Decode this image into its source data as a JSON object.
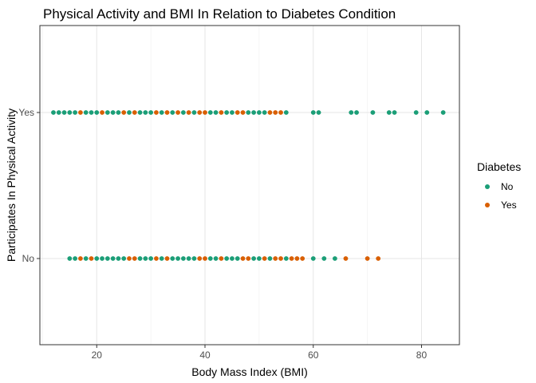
{
  "chart_data": {
    "type": "scatter",
    "title": "Physical Activity and BMI In Relation to Diabetes Condition",
    "xlabel": "Body Mass Index (BMI)",
    "ylabel": "Participates In Physical Activity",
    "xlim": [
      9.5,
      87
    ],
    "x_ticks": [
      20,
      40,
      60,
      80
    ],
    "y_categories": [
      "No",
      "Yes"
    ],
    "grid": true,
    "legend": {
      "title": "Diabetes",
      "position": "right",
      "entries": [
        "No",
        "Yes"
      ]
    },
    "colors": {
      "No": "#1b9e77",
      "Yes": "#d95f02"
    },
    "series": [
      {
        "name": "No",
        "points": [
          {
            "x": 12,
            "y": "Yes"
          },
          {
            "x": 13,
            "y": "Yes"
          },
          {
            "x": 14,
            "y": "Yes"
          },
          {
            "x": 15,
            "y": "Yes"
          },
          {
            "x": 16,
            "y": "Yes"
          },
          {
            "x": 18,
            "y": "Yes"
          },
          {
            "x": 19,
            "y": "Yes"
          },
          {
            "x": 20,
            "y": "Yes"
          },
          {
            "x": 22,
            "y": "Yes"
          },
          {
            "x": 23,
            "y": "Yes"
          },
          {
            "x": 24,
            "y": "Yes"
          },
          {
            "x": 26,
            "y": "Yes"
          },
          {
            "x": 28,
            "y": "Yes"
          },
          {
            "x": 29,
            "y": "Yes"
          },
          {
            "x": 30,
            "y": "Yes"
          },
          {
            "x": 32,
            "y": "Yes"
          },
          {
            "x": 34,
            "y": "Yes"
          },
          {
            "x": 36,
            "y": "Yes"
          },
          {
            "x": 38,
            "y": "Yes"
          },
          {
            "x": 41,
            "y": "Yes"
          },
          {
            "x": 42,
            "y": "Yes"
          },
          {
            "x": 44,
            "y": "Yes"
          },
          {
            "x": 45,
            "y": "Yes"
          },
          {
            "x": 48,
            "y": "Yes"
          },
          {
            "x": 49,
            "y": "Yes"
          },
          {
            "x": 50,
            "y": "Yes"
          },
          {
            "x": 51,
            "y": "Yes"
          },
          {
            "x": 55,
            "y": "Yes"
          },
          {
            "x": 60,
            "y": "Yes"
          },
          {
            "x": 61,
            "y": "Yes"
          },
          {
            "x": 67,
            "y": "Yes"
          },
          {
            "x": 68,
            "y": "Yes"
          },
          {
            "x": 71,
            "y": "Yes"
          },
          {
            "x": 74,
            "y": "Yes"
          },
          {
            "x": 75,
            "y": "Yes"
          },
          {
            "x": 79,
            "y": "Yes"
          },
          {
            "x": 81,
            "y": "Yes"
          },
          {
            "x": 84,
            "y": "Yes"
          },
          {
            "x": 15,
            "y": "No"
          },
          {
            "x": 16,
            "y": "No"
          },
          {
            "x": 18,
            "y": "No"
          },
          {
            "x": 20,
            "y": "No"
          },
          {
            "x": 21,
            "y": "No"
          },
          {
            "x": 22,
            "y": "No"
          },
          {
            "x": 23,
            "y": "No"
          },
          {
            "x": 24,
            "y": "No"
          },
          {
            "x": 25,
            "y": "No"
          },
          {
            "x": 28,
            "y": "No"
          },
          {
            "x": 29,
            "y": "No"
          },
          {
            "x": 30,
            "y": "No"
          },
          {
            "x": 32,
            "y": "No"
          },
          {
            "x": 34,
            "y": "No"
          },
          {
            "x": 35,
            "y": "No"
          },
          {
            "x": 36,
            "y": "No"
          },
          {
            "x": 37,
            "y": "No"
          },
          {
            "x": 38,
            "y": "No"
          },
          {
            "x": 41,
            "y": "No"
          },
          {
            "x": 42,
            "y": "No"
          },
          {
            "x": 44,
            "y": "No"
          },
          {
            "x": 45,
            "y": "No"
          },
          {
            "x": 46,
            "y": "No"
          },
          {
            "x": 49,
            "y": "No"
          },
          {
            "x": 50,
            "y": "No"
          },
          {
            "x": 52,
            "y": "No"
          },
          {
            "x": 55,
            "y": "No"
          },
          {
            "x": 60,
            "y": "No"
          },
          {
            "x": 62,
            "y": "No"
          },
          {
            "x": 64,
            "y": "No"
          }
        ]
      },
      {
        "name": "Yes",
        "points": [
          {
            "x": 17,
            "y": "Yes"
          },
          {
            "x": 21,
            "y": "Yes"
          },
          {
            "x": 25,
            "y": "Yes"
          },
          {
            "x": 27,
            "y": "Yes"
          },
          {
            "x": 31,
            "y": "Yes"
          },
          {
            "x": 33,
            "y": "Yes"
          },
          {
            "x": 35,
            "y": "Yes"
          },
          {
            "x": 37,
            "y": "Yes"
          },
          {
            "x": 39,
            "y": "Yes"
          },
          {
            "x": 40,
            "y": "Yes"
          },
          {
            "x": 43,
            "y": "Yes"
          },
          {
            "x": 46,
            "y": "Yes"
          },
          {
            "x": 47,
            "y": "Yes"
          },
          {
            "x": 52,
            "y": "Yes"
          },
          {
            "x": 53,
            "y": "Yes"
          },
          {
            "x": 54,
            "y": "Yes"
          },
          {
            "x": 17,
            "y": "No"
          },
          {
            "x": 19,
            "y": "No"
          },
          {
            "x": 26,
            "y": "No"
          },
          {
            "x": 27,
            "y": "No"
          },
          {
            "x": 31,
            "y": "No"
          },
          {
            "x": 33,
            "y": "No"
          },
          {
            "x": 39,
            "y": "No"
          },
          {
            "x": 40,
            "y": "No"
          },
          {
            "x": 43,
            "y": "No"
          },
          {
            "x": 47,
            "y": "No"
          },
          {
            "x": 48,
            "y": "No"
          },
          {
            "x": 51,
            "y": "No"
          },
          {
            "x": 53,
            "y": "No"
          },
          {
            "x": 54,
            "y": "No"
          },
          {
            "x": 56,
            "y": "No"
          },
          {
            "x": 57,
            "y": "No"
          },
          {
            "x": 58,
            "y": "No"
          },
          {
            "x": 66,
            "y": "No"
          },
          {
            "x": 70,
            "y": "No"
          },
          {
            "x": 72,
            "y": "No"
          }
        ]
      }
    ]
  }
}
